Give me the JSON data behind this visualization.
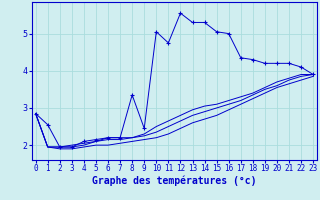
{
  "xlabel": "Graphe des températures (°c)",
  "bg_color": "#d0eef0",
  "grid_color": "#aadddd",
  "line_color": "#0000cc",
  "x_ticks": [
    0,
    1,
    2,
    3,
    4,
    5,
    6,
    7,
    8,
    9,
    10,
    11,
    12,
    13,
    14,
    15,
    16,
    17,
    18,
    19,
    20,
    21,
    22,
    23
  ],
  "y_ticks": [
    2,
    3,
    4,
    5
  ],
  "xlim": [
    -0.3,
    23.3
  ],
  "ylim": [
    1.6,
    5.85
  ],
  "series1_x": [
    0,
    1,
    2,
    3,
    4,
    5,
    6,
    7,
    8,
    9,
    10,
    11,
    12,
    13,
    14,
    15,
    16,
    17,
    18,
    19,
    20,
    21,
    22,
    23
  ],
  "series1_y": [
    2.85,
    2.55,
    1.95,
    1.95,
    2.1,
    2.15,
    2.2,
    2.2,
    3.35,
    2.45,
    5.05,
    4.75,
    5.55,
    5.3,
    5.3,
    5.05,
    5.0,
    4.35,
    4.3,
    4.2,
    4.2,
    4.2,
    4.1,
    3.9
  ],
  "series2_x": [
    0,
    1,
    2,
    3,
    4,
    5,
    6,
    7,
    8,
    9,
    10,
    11,
    12,
    13,
    14,
    15,
    16,
    17,
    18,
    19,
    20,
    21,
    22,
    23
  ],
  "series2_y": [
    2.85,
    1.95,
    1.95,
    1.95,
    2.0,
    2.1,
    2.2,
    2.2,
    2.2,
    2.3,
    2.5,
    2.65,
    2.8,
    2.95,
    3.05,
    3.1,
    3.2,
    3.3,
    3.4,
    3.55,
    3.7,
    3.8,
    3.9,
    3.9
  ],
  "series3_x": [
    0,
    1,
    2,
    3,
    4,
    5,
    6,
    7,
    8,
    9,
    10,
    11,
    12,
    13,
    14,
    15,
    16,
    17,
    18,
    19,
    20,
    21,
    22,
    23
  ],
  "series3_y": [
    2.85,
    1.95,
    1.95,
    2.0,
    2.05,
    2.1,
    2.15,
    2.15,
    2.2,
    2.25,
    2.35,
    2.5,
    2.65,
    2.8,
    2.9,
    3.0,
    3.1,
    3.2,
    3.35,
    3.5,
    3.6,
    3.75,
    3.85,
    3.9
  ],
  "series4_x": [
    0,
    1,
    2,
    3,
    4,
    5,
    6,
    7,
    8,
    9,
    10,
    11,
    12,
    13,
    14,
    15,
    16,
    17,
    18,
    19,
    20,
    21,
    22,
    23
  ],
  "series4_y": [
    2.85,
    1.95,
    1.9,
    1.9,
    1.95,
    2.0,
    2.0,
    2.05,
    2.1,
    2.15,
    2.2,
    2.3,
    2.45,
    2.6,
    2.7,
    2.8,
    2.95,
    3.1,
    3.25,
    3.4,
    3.55,
    3.65,
    3.75,
    3.85
  ],
  "tick_fontsize": 5.5,
  "xlabel_fontsize": 7.0
}
